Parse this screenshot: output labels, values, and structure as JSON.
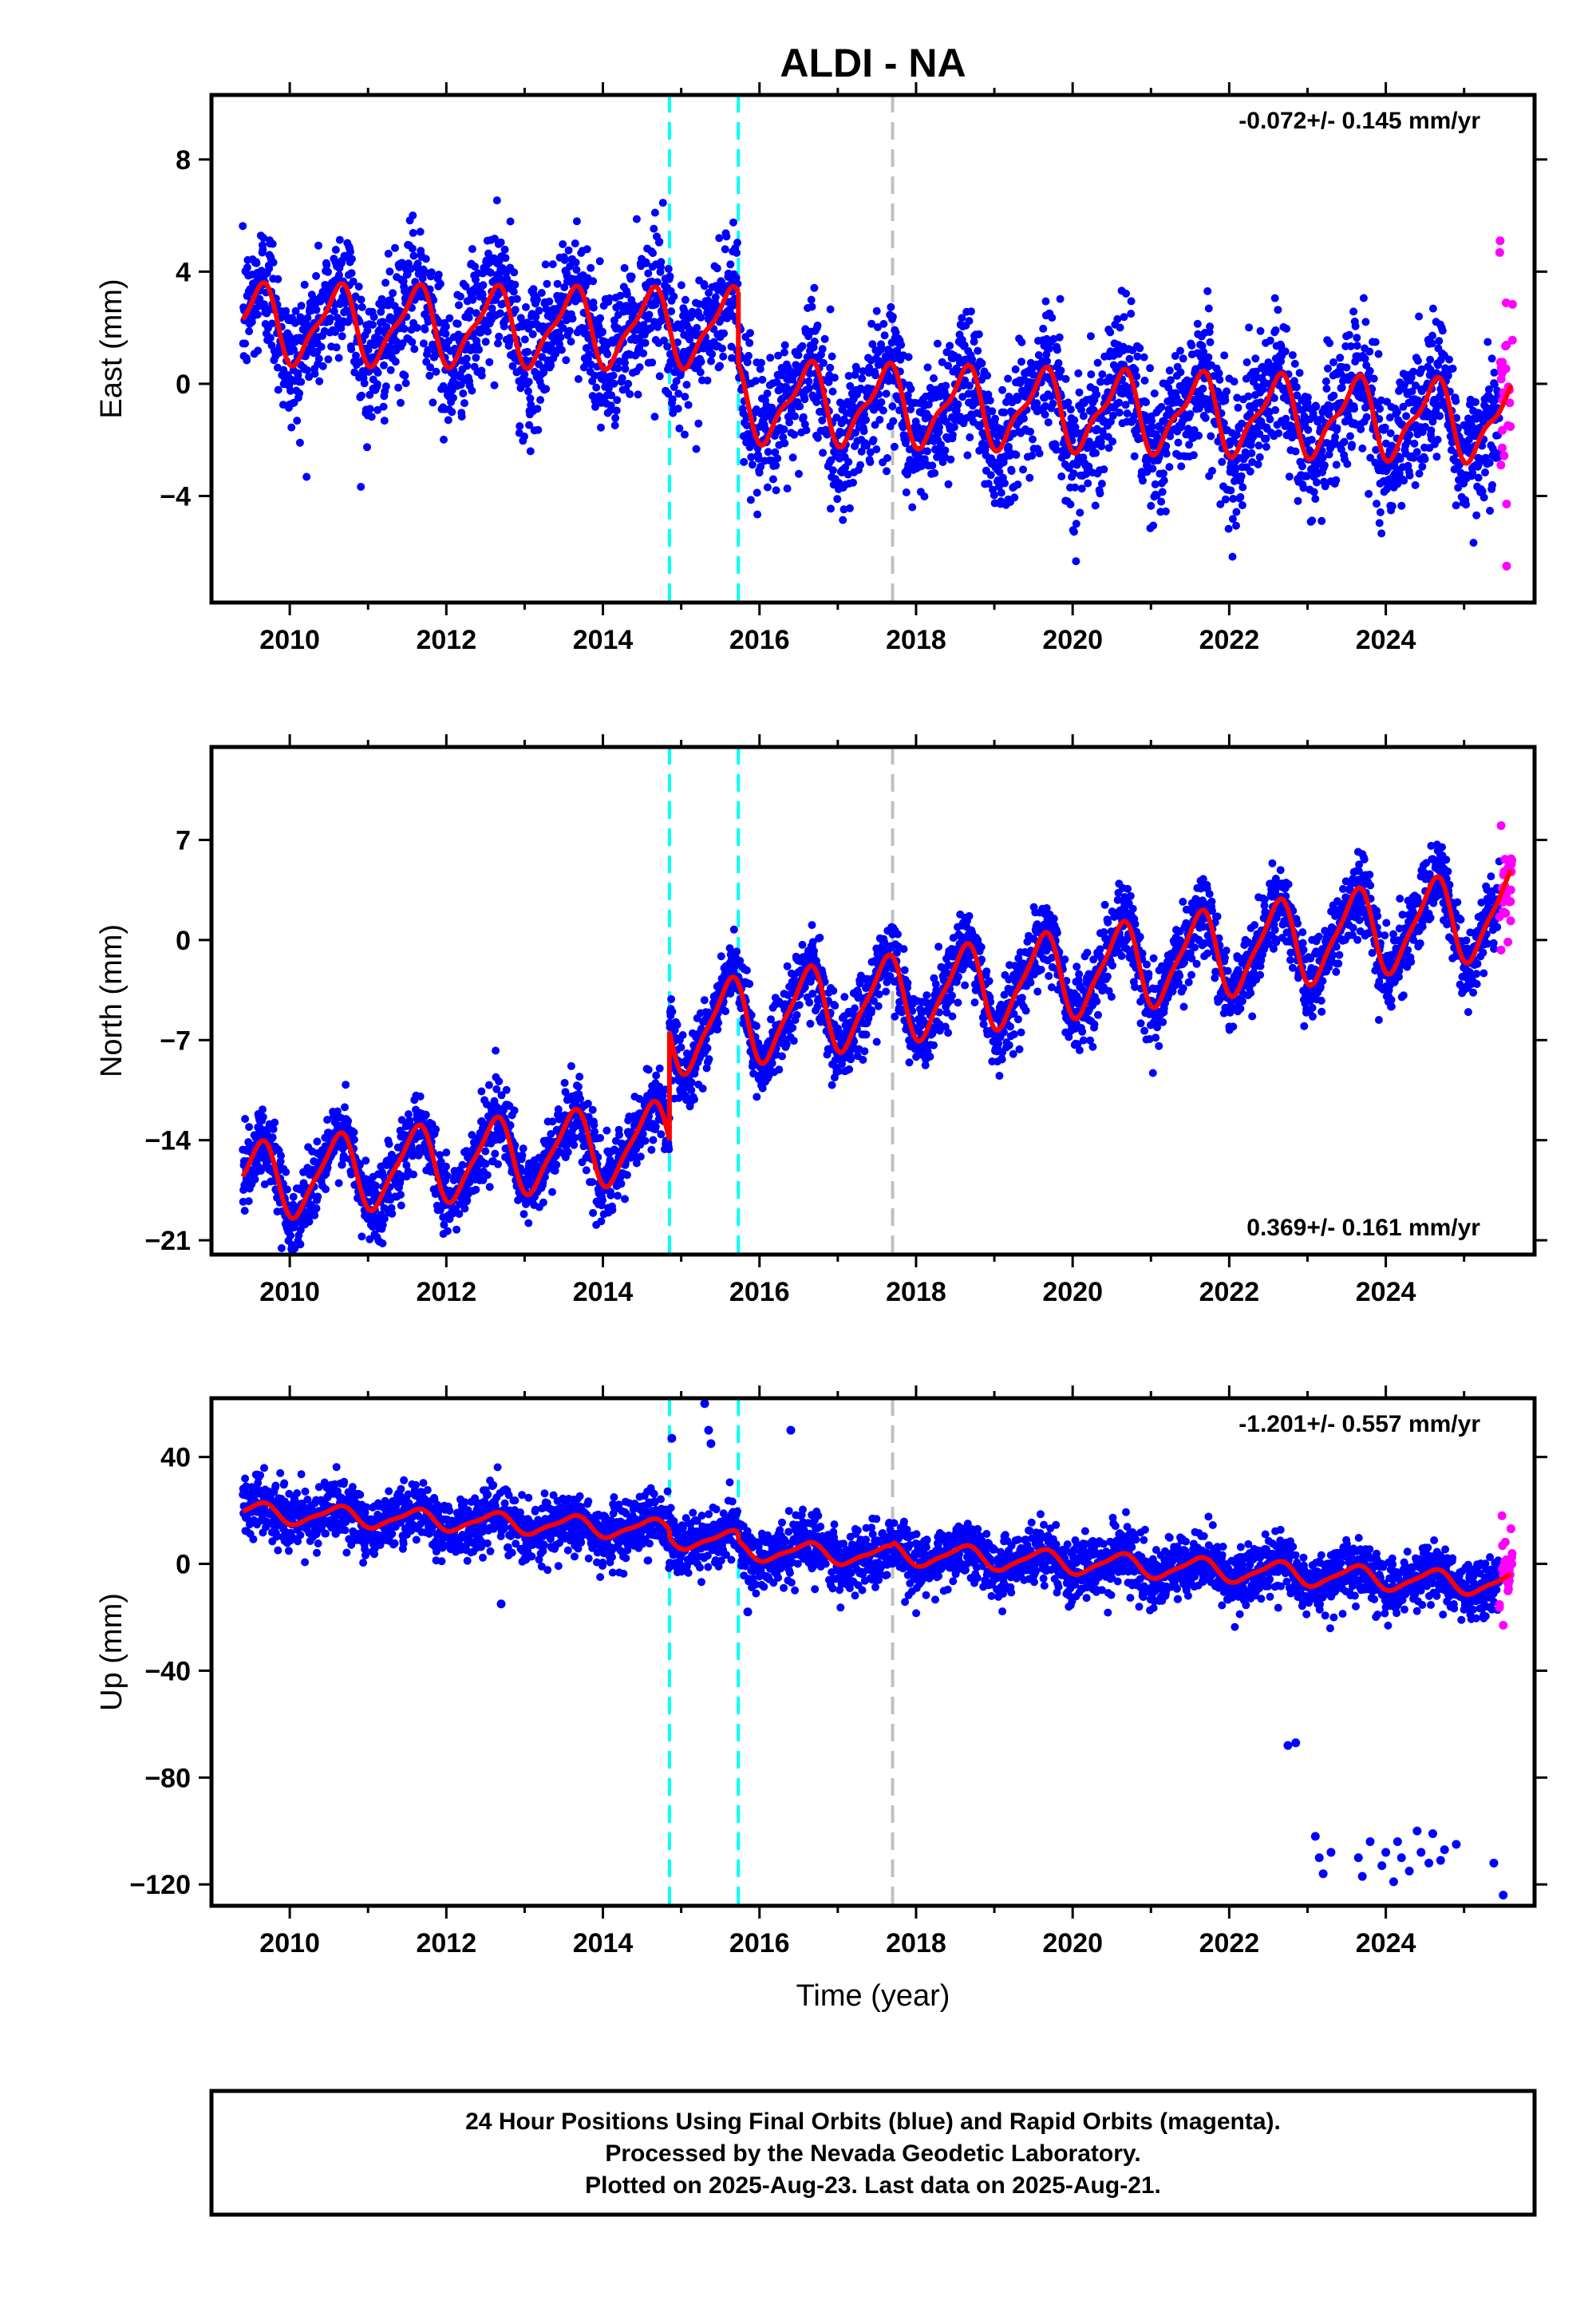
{
  "title": "ALDI - NA",
  "colors": {
    "final_orbits": "#0000ff",
    "rapid_orbits": "#ff00ff",
    "model": "#ff0000",
    "break_equipment": "#00ffff",
    "break_other": "#c0c0c0"
  },
  "footer": {
    "line1": "24 Hour Positions Using Final Orbits (blue) and Rapid Orbits (magenta).",
    "line2": "Processed by the Nevada Geodetic Laboratory.",
    "line3": "Plotted on 2025-Aug-23. Last data on 2025-Aug-21."
  },
  "chart_data": [
    {
      "type": "scatter",
      "panel": "east",
      "ylabel": "East (mm)",
      "xlabel": "",
      "rate_label": "-0.072+/- 0.145 mm/yr",
      "rate_position": "top-right",
      "xlim": [
        2009.0,
        2025.9
      ],
      "ylim": [
        -7.8,
        10.3
      ],
      "xticks": [
        "2010",
        "2012",
        "2014",
        "2016",
        "2018",
        "2020",
        "2022",
        "2024"
      ],
      "yticks": [
        "−4",
        "0",
        "4",
        "8"
      ],
      "ytick_values": [
        -4,
        0,
        4,
        8
      ],
      "breaks": [
        {
          "x": 2014.85,
          "kind": "equipment"
        },
        {
          "x": 2015.73,
          "kind": "equipment"
        },
        {
          "x": 2017.7,
          "kind": "other"
        }
      ],
      "model": {
        "segments": [
          {
            "x_start": 2009.4,
            "x_end": 2014.85,
            "offset": 2.05,
            "trend": -0.03,
            "annual_amp": 1.3,
            "semiannual_amp": 0.4
          },
          {
            "x_start": 2014.85,
            "x_end": 2015.73,
            "offset": 2.0,
            "trend": -0.03,
            "annual_amp": 1.3,
            "semiannual_amp": 0.4
          },
          {
            "x_start": 2015.73,
            "x_end": 2025.6,
            "offset": -1.0,
            "trend": -0.072,
            "annual_amp": 1.3,
            "semiannual_amp": 0.45
          }
        ]
      },
      "final_orbits_scatter_mm": 1.2,
      "rapid_orbits": {
        "x_start": 2025.45,
        "x_end": 2025.62,
        "y_min": -6.5,
        "y_max": 5.1
      }
    },
    {
      "type": "scatter",
      "panel": "north",
      "ylabel": "North (mm)",
      "xlabel": "",
      "rate_label": "0.369+/- 0.161 mm/yr",
      "rate_position": "bottom-right",
      "xlim": [
        2009.0,
        2025.9
      ],
      "ylim": [
        -22,
        13.5
      ],
      "xticks": [
        "2010",
        "2012",
        "2014",
        "2016",
        "2018",
        "2020",
        "2022",
        "2024"
      ],
      "yticks": [
        "−21",
        "−14",
        "−7",
        "0",
        "7"
      ],
      "ytick_values": [
        -21,
        -14,
        -7,
        0,
        7
      ],
      "breaks": [
        {
          "x": 2014.85,
          "kind": "equipment"
        },
        {
          "x": 2015.73,
          "kind": "equipment"
        },
        {
          "x": 2017.7,
          "kind": "other"
        }
      ],
      "model": {
        "segments": [
          {
            "x_start": 2009.4,
            "x_end": 2014.85,
            "offset": -15.5,
            "trend": 0.55,
            "annual_amp": 2.6,
            "semiannual_amp": 0.6
          },
          {
            "x_start": 2014.85,
            "x_end": 2025.6,
            "offset": -2.2,
            "trend": 0.78,
            "annual_amp": 2.9,
            "semiannual_amp": 0.7
          }
        ]
      },
      "final_orbits_scatter_mm": 1.3,
      "rapid_orbits": {
        "x_start": 2025.45,
        "x_end": 2025.62,
        "y_min": -0.7,
        "y_max": 8.0
      }
    },
    {
      "type": "scatter",
      "panel": "up",
      "ylabel": "Up (mm)",
      "xlabel": "Time (year)",
      "rate_label": "-1.201+/- 0.557 mm/yr",
      "rate_position": "top-right",
      "xlim": [
        2009.0,
        2025.9
      ],
      "ylim": [
        -128,
        62
      ],
      "xticks": [
        "2010",
        "2012",
        "2014",
        "2016",
        "2018",
        "2020",
        "2022",
        "2024"
      ],
      "yticks": [
        "−120",
        "−80",
        "−40",
        "0",
        "40"
      ],
      "ytick_values": [
        -120,
        -80,
        -40,
        0,
        40
      ],
      "breaks": [
        {
          "x": 2014.85,
          "kind": "equipment"
        },
        {
          "x": 2015.73,
          "kind": "equipment"
        },
        {
          "x": 2017.7,
          "kind": "other"
        }
      ],
      "model": {
        "segments": [
          {
            "x_start": 2009.4,
            "x_end": 2014.85,
            "offset": 16,
            "trend": -1.2,
            "annual_amp": 3.5,
            "semiannual_amp": 1.0
          },
          {
            "x_start": 2014.85,
            "x_end": 2015.73,
            "offset": 9,
            "trend": -1.2,
            "annual_amp": 3.5,
            "semiannual_amp": 1.0
          },
          {
            "x_start": 2015.73,
            "x_end": 2017.7,
            "offset": 4,
            "trend": -1.2,
            "annual_amp": 3.5,
            "semiannual_amp": 1.0
          },
          {
            "x_start": 2017.7,
            "x_end": 2025.6,
            "offset": -2,
            "trend": -1.5,
            "annual_amp": 4.0,
            "semiannual_amp": 1.0
          }
        ]
      },
      "final_orbits_scatter_mm": 5.5,
      "outliers": [
        {
          "x": 2014.88,
          "y": 47
        },
        {
          "x": 2015.3,
          "y": 60
        },
        {
          "x": 2015.35,
          "y": 50
        },
        {
          "x": 2015.38,
          "y": 45
        },
        {
          "x": 2016.4,
          "y": 50
        },
        {
          "x": 2012.7,
          "y": -15
        },
        {
          "x": 2015.85,
          "y": -18
        },
        {
          "x": 2022.75,
          "y": -68
        },
        {
          "x": 2022.85,
          "y": -67
        },
        {
          "x": 2023.1,
          "y": -102
        },
        {
          "x": 2023.15,
          "y": -110
        },
        {
          "x": 2023.2,
          "y": -116
        },
        {
          "x": 2023.3,
          "y": -108
        },
        {
          "x": 2023.65,
          "y": -110
        },
        {
          "x": 2023.7,
          "y": -117
        },
        {
          "x": 2023.8,
          "y": -104
        },
        {
          "x": 2023.95,
          "y": -113
        },
        {
          "x": 2024.0,
          "y": -108
        },
        {
          "x": 2024.1,
          "y": -119
        },
        {
          "x": 2024.15,
          "y": -104
        },
        {
          "x": 2024.2,
          "y": -110
        },
        {
          "x": 2024.3,
          "y": -115
        },
        {
          "x": 2024.4,
          "y": -100
        },
        {
          "x": 2024.45,
          "y": -108
        },
        {
          "x": 2024.55,
          "y": -112
        },
        {
          "x": 2024.6,
          "y": -101
        },
        {
          "x": 2024.7,
          "y": -111
        },
        {
          "x": 2024.75,
          "y": -107
        },
        {
          "x": 2024.9,
          "y": -105
        },
        {
          "x": 2025.38,
          "y": -112
        },
        {
          "x": 2025.5,
          "y": -124
        }
      ],
      "rapid_orbits": {
        "x_start": 2025.45,
        "x_end": 2025.62,
        "y_min": -23,
        "y_max": 18
      }
    }
  ]
}
